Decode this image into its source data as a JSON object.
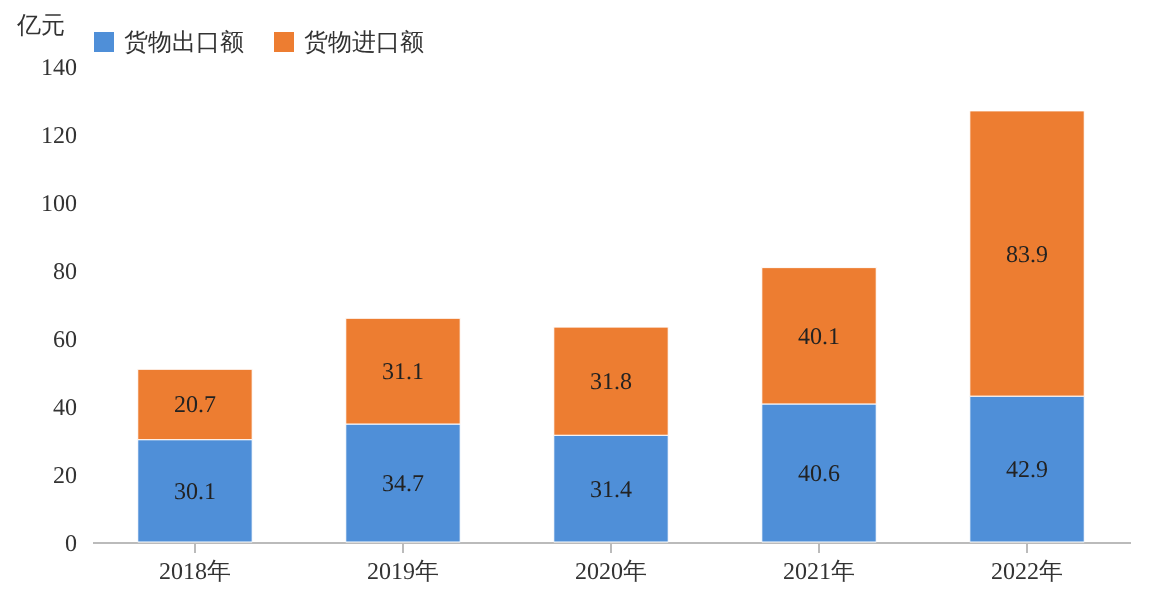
{
  "chart_data": {
    "type": "bar",
    "stacked": true,
    "ylabel": "亿元",
    "categories": [
      "2018年",
      "2019年",
      "2020年",
      "2021年",
      "2022年"
    ],
    "series": [
      {
        "name": "货物出口额",
        "color": "#4f8fd8",
        "values": [
          30.1,
          34.7,
          31.4,
          40.6,
          42.9
        ]
      },
      {
        "name": "货物进口额",
        "color": "#ed7d31",
        "values": [
          20.7,
          31.1,
          31.8,
          40.1,
          83.9
        ]
      }
    ],
    "ylim": [
      0,
      140
    ],
    "yticks": [
      0,
      20,
      40,
      60,
      80,
      100,
      120,
      140
    ],
    "grid": false,
    "legend": "top",
    "data_labels": true
  }
}
